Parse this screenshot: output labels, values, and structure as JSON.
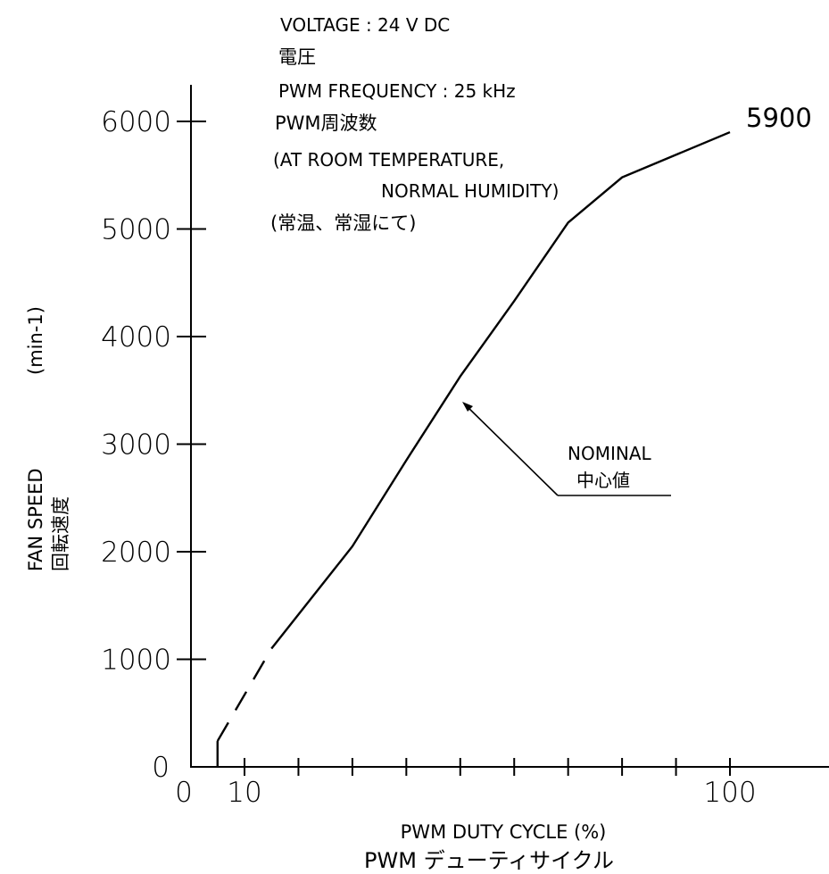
{
  "notes": {
    "voltage": "VOLTAGE : 24 V DC",
    "voltage_jp": "電圧",
    "pwm_freq": "PWM FREQUENCY : 25 kHz",
    "pwm_freq_jp": "PWM周波数",
    "condition_line1": "(AT ROOM TEMPERATURE,",
    "condition_line2": "NORMAL HUMIDITY)",
    "condition_jp": "(常温、常湿にて)"
  },
  "annotation": {
    "label": "NOMINAL",
    "label_jp": "中心値",
    "end_value_label": "5900"
  },
  "chart_data": {
    "type": "line",
    "xlabel": "PWM DUTY CYCLE (%)",
    "xlabel_jp": "PWM デューティサイクル",
    "ylabel": "FAN SPEED",
    "ylabel_jp": "回転速度",
    "ylabel_unit": "(min-1)",
    "x_tick_labels": [
      "0",
      "10",
      "100"
    ],
    "y_tick_labels": [
      "0",
      "1000",
      "2000",
      "3000",
      "4000",
      "5000",
      "6000"
    ],
    "y_ticks": [
      0,
      1000,
      2000,
      3000,
      4000,
      5000,
      6000
    ],
    "xlim": [
      0,
      115
    ],
    "ylim": [
      0,
      6000
    ],
    "x_ticks_minor": [
      10,
      20,
      30,
      40,
      50,
      60,
      70,
      80,
      90,
      100
    ],
    "series": [
      {
        "style": "solid",
        "points": [
          [
            5,
            0
          ],
          [
            5,
            240
          ]
        ]
      },
      {
        "style": "dashed",
        "points": [
          [
            5,
            240
          ],
          [
            15,
            1100
          ]
        ]
      },
      {
        "style": "solid",
        "points": [
          [
            15,
            1100
          ],
          [
            30,
            2050
          ],
          [
            40,
            2850
          ],
          [
            50,
            3630
          ],
          [
            60,
            4330
          ],
          [
            70,
            5060
          ],
          [
            80,
            5480
          ],
          [
            100,
            5900
          ]
        ]
      }
    ],
    "nominal_point": [
      50,
      3370
    ]
  }
}
